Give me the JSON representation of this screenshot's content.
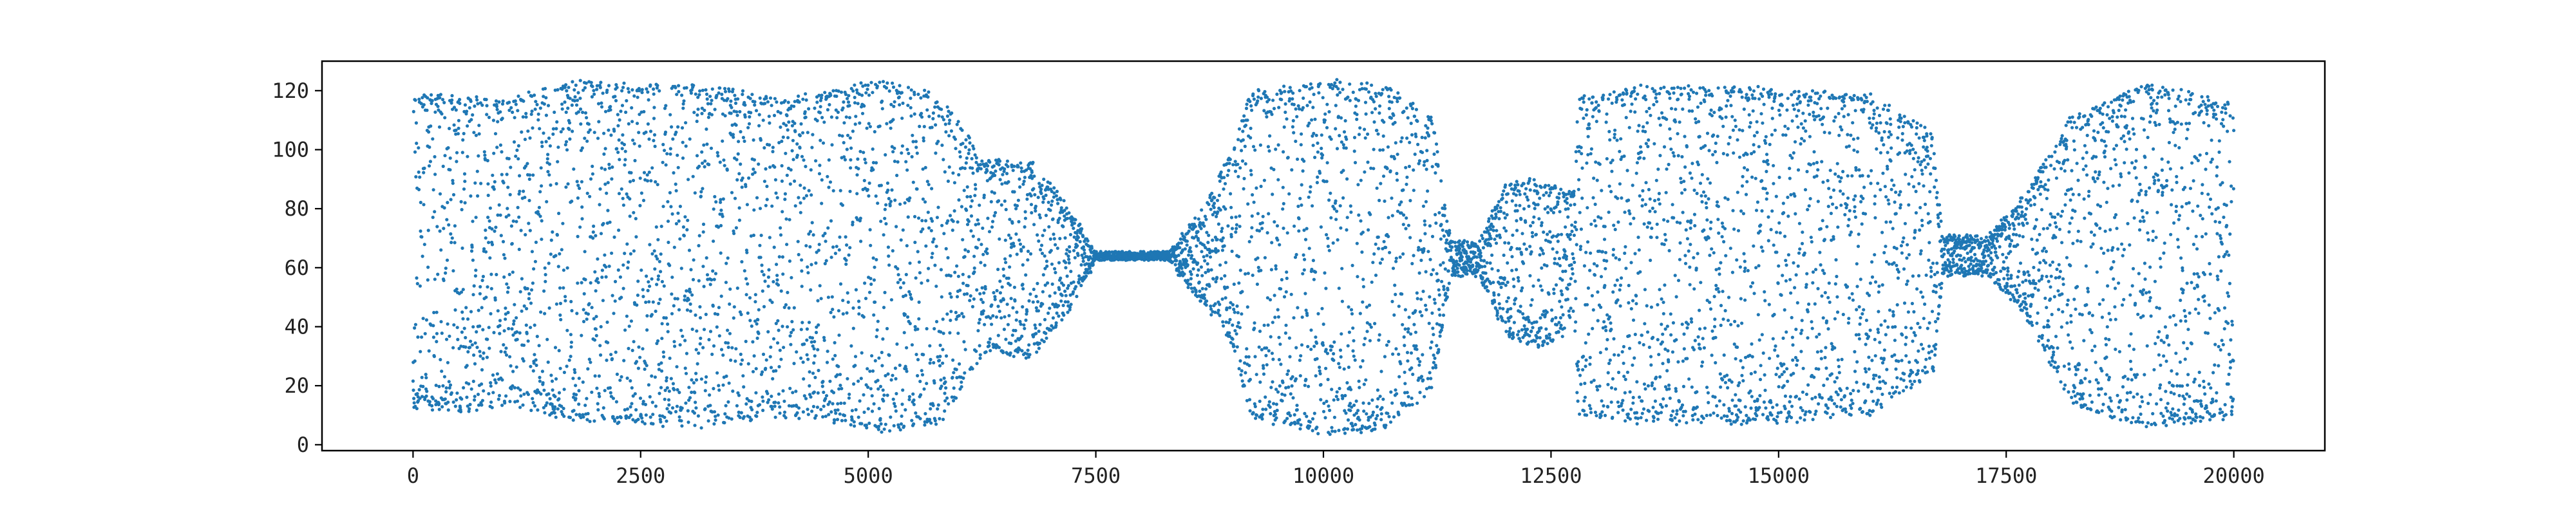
{
  "chart_data": {
    "type": "scatter",
    "title": "",
    "xlabel": "",
    "ylabel": "",
    "xlim": [
      -1000,
      21000
    ],
    "ylim": [
      -2,
      130
    ],
    "grid": false,
    "legend": "none",
    "marker_color": "#1f77b4",
    "x_ticks": [
      {
        "value": 0,
        "label": "0"
      },
      {
        "value": 2500,
        "label": "2500"
      },
      {
        "value": 5000,
        "label": "5000"
      },
      {
        "value": 7500,
        "label": "7500"
      },
      {
        "value": 10000,
        "label": "10000"
      },
      {
        "value": 12500,
        "label": "12500"
      },
      {
        "value": 15000,
        "label": "15000"
      },
      {
        "value": 17500,
        "label": "17500"
      },
      {
        "value": 20000,
        "label": "20000"
      }
    ],
    "y_ticks": [
      {
        "value": 0,
        "label": "0"
      },
      {
        "value": 20,
        "label": "20"
      },
      {
        "value": 40,
        "label": "40"
      },
      {
        "value": 60,
        "label": "60"
      },
      {
        "value": 80,
        "label": "80"
      },
      {
        "value": 100,
        "label": "100"
      },
      {
        "value": 120,
        "label": "120"
      }
    ],
    "series": [
      {
        "x_range": [
          0,
          20000
        ],
        "center": 64,
        "envelope": [
          {
            "x": 0,
            "lo": 13,
            "hi": 118
          },
          {
            "x": 500,
            "lo": 12,
            "hi": 118
          },
          {
            "x": 1000,
            "lo": 14,
            "hi": 116
          },
          {
            "x": 1800,
            "lo": 9,
            "hi": 123
          },
          {
            "x": 2500,
            "lo": 8,
            "hi": 121
          },
          {
            "x": 3000,
            "lo": 6,
            "hi": 121
          },
          {
            "x": 3500,
            "lo": 8,
            "hi": 120
          },
          {
            "x": 4000,
            "lo": 10,
            "hi": 116
          },
          {
            "x": 4500,
            "lo": 9,
            "hi": 119
          },
          {
            "x": 5200,
            "lo": 5,
            "hi": 123
          },
          {
            "x": 5800,
            "lo": 8,
            "hi": 118
          },
          {
            "x": 6050,
            "lo": 20,
            "hi": 106
          },
          {
            "x": 6300,
            "lo": 32,
            "hi": 96
          },
          {
            "x": 6800,
            "lo": 30,
            "hi": 95
          },
          {
            "x": 7200,
            "lo": 46,
            "hi": 80
          },
          {
            "x": 7500,
            "lo": 62,
            "hi": 65
          },
          {
            "x": 8300,
            "lo": 62,
            "hi": 65
          },
          {
            "x": 8700,
            "lo": 48,
            "hi": 80
          },
          {
            "x": 9000,
            "lo": 35,
            "hi": 100
          },
          {
            "x": 9200,
            "lo": 10,
            "hi": 119
          },
          {
            "x": 10000,
            "lo": 4,
            "hi": 123
          },
          {
            "x": 10700,
            "lo": 6,
            "hi": 121
          },
          {
            "x": 11200,
            "lo": 20,
            "hi": 110
          },
          {
            "x": 11400,
            "lo": 58,
            "hi": 68
          },
          {
            "x": 11700,
            "lo": 58,
            "hi": 68
          },
          {
            "x": 12000,
            "lo": 38,
            "hi": 88
          },
          {
            "x": 12400,
            "lo": 33,
            "hi": 90
          },
          {
            "x": 12750,
            "lo": 40,
            "hi": 85
          },
          {
            "x": 12800,
            "lo": 10,
            "hi": 117
          },
          {
            "x": 13500,
            "lo": 8,
            "hi": 121
          },
          {
            "x": 15000,
            "lo": 8,
            "hi": 120
          },
          {
            "x": 16000,
            "lo": 11,
            "hi": 118
          },
          {
            "x": 16700,
            "lo": 25,
            "hi": 105
          },
          {
            "x": 16800,
            "lo": 58,
            "hi": 70
          },
          {
            "x": 17300,
            "lo": 58,
            "hi": 70
          },
          {
            "x": 17700,
            "lo": 45,
            "hi": 84
          },
          {
            "x": 18200,
            "lo": 15,
            "hi": 110
          },
          {
            "x": 19000,
            "lo": 6,
            "hi": 122
          },
          {
            "x": 19500,
            "lo": 8,
            "hi": 120
          },
          {
            "x": 20000,
            "lo": 10,
            "hi": 115
          }
        ],
        "sample_count": 9000
      }
    ]
  }
}
